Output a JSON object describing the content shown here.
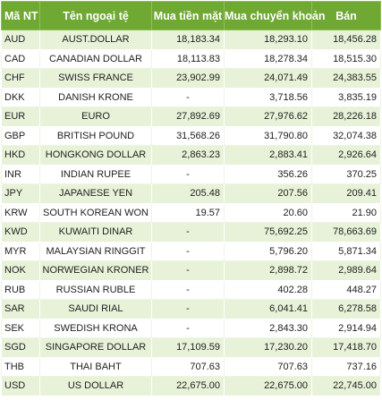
{
  "headers": {
    "code": "Mã NT",
    "name": "Tên ngoại tệ",
    "cash_buy": "Mua tiền mặt",
    "transfer_buy": "Mua chuyển khoản",
    "sell": "Bán"
  },
  "rows": [
    {
      "code": "AUD",
      "name": "AUST.DOLLAR",
      "cash": "18,183.34",
      "transfer": "18,293.10",
      "sell": "18,456.28"
    },
    {
      "code": "CAD",
      "name": "CANADIAN DOLLAR",
      "cash": "18,113.83",
      "transfer": "18,278.34",
      "sell": "18,515.30"
    },
    {
      "code": "CHF",
      "name": "SWISS FRANCE",
      "cash": "23,902.99",
      "transfer": "24,071.49",
      "sell": "24,383.55"
    },
    {
      "code": "DKK",
      "name": "DANISH KRONE",
      "cash": "-",
      "transfer": "3,718.56",
      "sell": "3,835.19"
    },
    {
      "code": "EUR",
      "name": "EURO",
      "cash": "27,892.69",
      "transfer": "27,976.62",
      "sell": "28,226.18"
    },
    {
      "code": "GBP",
      "name": "BRITISH POUND",
      "cash": "31,568.26",
      "transfer": "31,790.80",
      "sell": "32,074.38"
    },
    {
      "code": "HKD",
      "name": "HONGKONG DOLLAR",
      "cash": "2,863.23",
      "transfer": "2,883.41",
      "sell": "2,926.64"
    },
    {
      "code": "INR",
      "name": "INDIAN RUPEE",
      "cash": "-",
      "transfer": "356.26",
      "sell": "370.25"
    },
    {
      "code": "JPY",
      "name": "JAPANESE YEN",
      "cash": "205.48",
      "transfer": "207.56",
      "sell": "209.41"
    },
    {
      "code": "KRW",
      "name": "SOUTH KOREAN WON",
      "cash": "19.57",
      "transfer": "20.60",
      "sell": "21.90"
    },
    {
      "code": "KWD",
      "name": "KUWAITI DINAR",
      "cash": "-",
      "transfer": "75,692.25",
      "sell": "78,663.69"
    },
    {
      "code": "MYR",
      "name": "MALAYSIAN RINGGIT",
      "cash": "-",
      "transfer": "5,796.20",
      "sell": "5,871.34"
    },
    {
      "code": "NOK",
      "name": "NORWEGIAN KRONER",
      "cash": "-",
      "transfer": "2,898.72",
      "sell": "2,989.64"
    },
    {
      "code": "RUB",
      "name": "RUSSIAN RUBLE",
      "cash": "-",
      "transfer": "402.28",
      "sell": "448.27"
    },
    {
      "code": "SAR",
      "name": "SAUDI RIAL",
      "cash": "-",
      "transfer": "6,041.41",
      "sell": "6,278.58"
    },
    {
      "code": "SEK",
      "name": "SWEDISH KRONA",
      "cash": "-",
      "transfer": "2,843.30",
      "sell": "2,914.94"
    },
    {
      "code": "SGD",
      "name": "SINGAPORE DOLLAR",
      "cash": "17,109.59",
      "transfer": "17,230.20",
      "sell": "17,418.70"
    },
    {
      "code": "THB",
      "name": "THAI BAHT",
      "cash": "707.63",
      "transfer": "707.63",
      "sell": "737.16"
    },
    {
      "code": "USD",
      "name": "US DOLLAR",
      "cash": "22,675.00",
      "transfer": "22,675.00",
      "sell": "22,745.00"
    }
  ],
  "colors": {
    "header_bg": "#6fa832",
    "header_text": "#ffffff",
    "row_alt_bg": "#e8f2d8",
    "row_bg": "#ffffff"
  }
}
